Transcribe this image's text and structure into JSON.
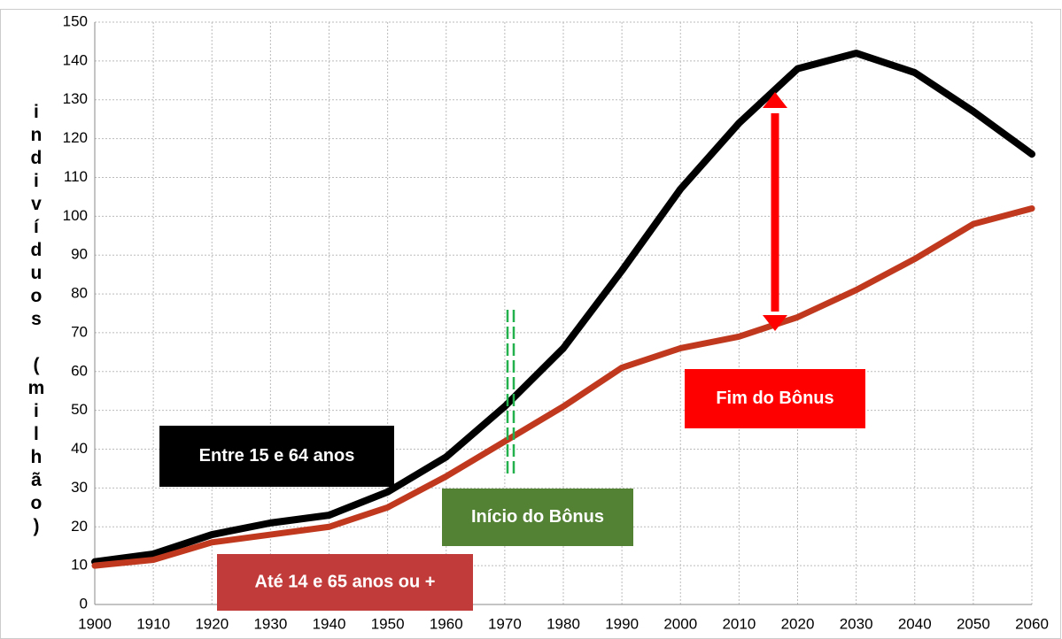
{
  "chart_data": {
    "type": "line",
    "y_axis_label": "indivíduos (milhão)",
    "x": [
      1900,
      1910,
      1920,
      1930,
      1940,
      1950,
      1960,
      1970,
      1980,
      1990,
      2000,
      2010,
      2020,
      2030,
      2040,
      2050,
      2060
    ],
    "series": [
      {
        "name": "Entre 15 e 64 anos",
        "color": "#000000",
        "values": [
          11,
          13,
          18,
          21,
          23,
          29,
          38,
          51,
          66,
          86,
          107,
          124,
          138,
          142,
          137,
          127,
          116
        ]
      },
      {
        "name": "Até 14 e 65 anos ou +",
        "color": "#c0391f",
        "values": [
          10,
          11.5,
          16,
          18,
          20,
          25,
          33,
          42,
          51,
          61,
          66,
          69,
          74,
          81,
          89,
          98,
          102
        ]
      }
    ],
    "annotations": [
      "Início do Bônus",
      "Fim do Bônus"
    ],
    "xlim": [
      1900,
      2060
    ],
    "xticks": [
      1900,
      1910,
      1920,
      1930,
      1940,
      1950,
      1960,
      1970,
      1980,
      1990,
      2000,
      2010,
      2020,
      2030,
      2040,
      2050,
      2060
    ],
    "ylim": [
      0,
      150
    ],
    "yticks": [
      0,
      10,
      20,
      30,
      40,
      50,
      60,
      70,
      80,
      90,
      100,
      110,
      120,
      130,
      140,
      150
    ],
    "grid": true
  }
}
